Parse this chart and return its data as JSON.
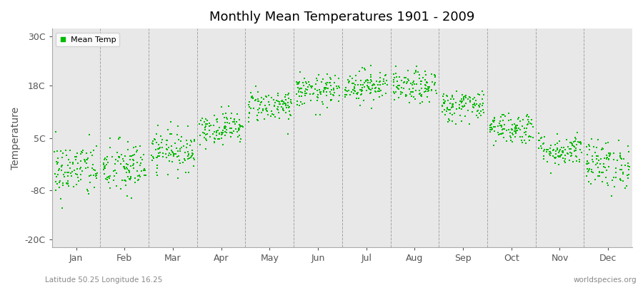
{
  "title": "Monthly Mean Temperatures 1901 - 2009",
  "ylabel": "Temperature",
  "yticks": [
    -20,
    -8,
    5,
    18,
    30
  ],
  "ytick_labels": [
    "-20C",
    "-8C",
    "5C",
    "18C",
    "30C"
  ],
  "ylim": [
    -22,
    32
  ],
  "months": [
    "Jan",
    "Feb",
    "Mar",
    "Apr",
    "May",
    "Jun",
    "Jul",
    "Aug",
    "Sep",
    "Oct",
    "Nov",
    "Dec"
  ],
  "n_years": 109,
  "mean_temps": [
    -3.0,
    -2.5,
    2.0,
    7.5,
    13.0,
    16.5,
    18.0,
    17.5,
    13.0,
    7.5,
    2.0,
    -1.5
  ],
  "std_temps": [
    3.5,
    3.5,
    2.5,
    2.0,
    2.0,
    2.0,
    2.0,
    2.0,
    2.0,
    2.0,
    2.0,
    3.0
  ],
  "dot_color": "#00bb00",
  "dot_size": 3,
  "bg_color": "#e8e8e8",
  "outer_bg": "#ffffff",
  "grid_color": "#888888",
  "subtitle_left": "Latitude 50.25 Longitude 16.25",
  "subtitle_right": "worldspecies.org",
  "legend_label": "Mean Temp",
  "seed": 42
}
